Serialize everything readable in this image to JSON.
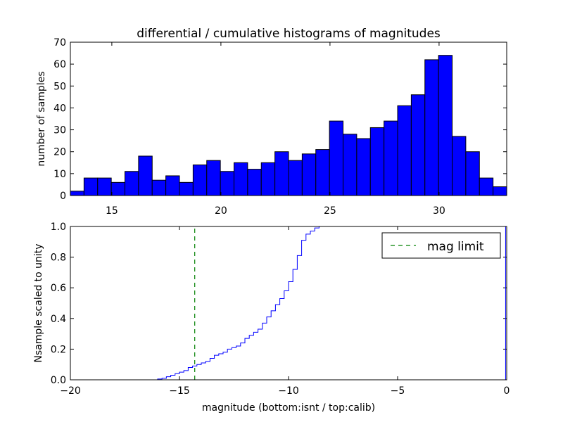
{
  "chart_data": [
    {
      "type": "bar",
      "title": "differential / cumulative histograms of magnitudes",
      "xlabel": "",
      "ylabel": "number of samples",
      "xlim": [
        13.1,
        33.1
      ],
      "ylim": [
        0,
        70
      ],
      "bin_width": 0.625,
      "bar_color": "#0000ff",
      "xticks": [
        15,
        20,
        25,
        30
      ],
      "yticks": [
        0,
        10,
        20,
        30,
        40,
        50,
        60,
        70
      ],
      "x_tick_position": "top",
      "bin_starts": [
        13.1,
        13.725,
        14.35,
        14.975,
        15.6,
        16.225,
        16.85,
        17.475,
        18.1,
        18.725,
        19.35,
        19.975,
        20.6,
        21.225,
        21.85,
        22.475,
        23.1,
        23.725,
        24.35,
        24.975,
        25.6,
        26.225,
        26.85,
        27.475,
        28.1,
        28.725,
        29.35,
        29.975,
        30.6,
        31.225,
        31.85,
        32.475
      ],
      "values": [
        2,
        8,
        8,
        6,
        11,
        18,
        7,
        9,
        6,
        14,
        16,
        11,
        15,
        12,
        15,
        20,
        16,
        19,
        21,
        34,
        28,
        26,
        31,
        34,
        41,
        46,
        62,
        64,
        27,
        20,
        8,
        4
      ]
    },
    {
      "type": "line",
      "xlabel": "magnitude (bottom:isnt / top:calib)",
      "ylabel": "Nsample scaled to unity",
      "xlim": [
        -20,
        0
      ],
      "ylim": [
        0,
        1.0
      ],
      "xticks": [
        -20,
        -15,
        -10,
        -5,
        0
      ],
      "yticks": [
        0.0,
        0.2,
        0.4,
        0.6,
        0.8,
        1.0
      ],
      "ytick_labels": [
        "0.0",
        "0.2",
        "0.4",
        "0.6",
        "0.8",
        "1.0"
      ],
      "xtick_labels": [
        "−20",
        "−15",
        "−10",
        "−5",
        "0"
      ],
      "legend": {
        "location": "upper right",
        "entries": [
          "mag limit"
        ]
      },
      "series": [
        {
          "name": "cumulative",
          "color": "#0000ff",
          "style": "steps",
          "x": [
            -20,
            -16.0,
            -15.8,
            -15.6,
            -15.4,
            -15.2,
            -15.0,
            -14.8,
            -14.6,
            -14.4,
            -14.2,
            -14.0,
            -13.8,
            -13.6,
            -13.4,
            -13.2,
            -13.0,
            -12.8,
            -12.6,
            -12.4,
            -12.2,
            -12.0,
            -11.8,
            -11.6,
            -11.4,
            -11.2,
            -11.0,
            -10.8,
            -10.6,
            -10.4,
            -10.2,
            -10.0,
            -9.8,
            -9.6,
            -9.4,
            -9.2,
            -9.0,
            -8.8,
            -8.6,
            -8.4,
            -8.2,
            -8.0,
            -0.05,
            -0.05
          ],
          "values": [
            0,
            0.005,
            0.01,
            0.02,
            0.03,
            0.04,
            0.05,
            0.06,
            0.08,
            0.09,
            0.1,
            0.11,
            0.12,
            0.14,
            0.16,
            0.17,
            0.18,
            0.2,
            0.21,
            0.22,
            0.24,
            0.27,
            0.29,
            0.31,
            0.33,
            0.37,
            0.41,
            0.45,
            0.49,
            0.53,
            0.58,
            0.64,
            0.72,
            0.81,
            0.91,
            0.95,
            0.97,
            0.99,
            1.0,
            1.0,
            1.0,
            1.0,
            1.0,
            0.0
          ]
        },
        {
          "name": "mag limit",
          "color": "#008000",
          "style": "dashed",
          "x": [
            -14.3,
            -14.3
          ],
          "values": [
            0,
            1.0
          ]
        }
      ]
    }
  ]
}
